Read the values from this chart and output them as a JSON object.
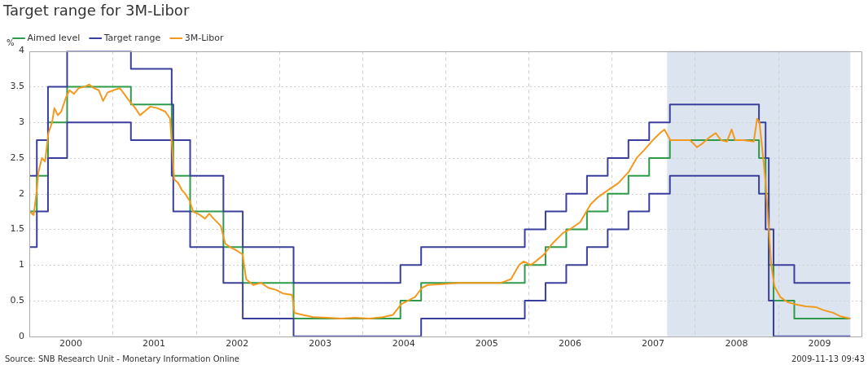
{
  "chart_data": {
    "type": "line",
    "title": "Target range for 3M-Libor",
    "ylabel": "%",
    "legend": "top left",
    "grid": true,
    "xlim": [
      "2000-01-01",
      "2010-01-01"
    ],
    "xticks": [
      {
        "value": "2000-07-01",
        "label": "2000"
      },
      {
        "value": "2001-01-01",
        "label": null
      },
      {
        "value": "2001-07-01",
        "label": "2001"
      },
      {
        "value": "2002-01-01",
        "label": null
      },
      {
        "value": "2002-07-01",
        "label": "2002"
      },
      {
        "value": "2003-01-01",
        "label": null
      },
      {
        "value": "2003-07-01",
        "label": "2003"
      },
      {
        "value": "2004-01-01",
        "label": null
      },
      {
        "value": "2004-07-01",
        "label": "2004"
      },
      {
        "value": "2005-01-01",
        "label": null
      },
      {
        "value": "2005-07-01",
        "label": "2005"
      },
      {
        "value": "2006-01-01",
        "label": null
      },
      {
        "value": "2006-07-01",
        "label": "2006"
      },
      {
        "value": "2007-01-01",
        "label": null
      },
      {
        "value": "2007-07-01",
        "label": "2007"
      },
      {
        "value": "2008-01-01",
        "label": null
      },
      {
        "value": "2008-07-01",
        "label": "2008"
      },
      {
        "value": "2009-01-01",
        "label": null
      },
      {
        "value": "2009-07-01",
        "label": "2009"
      }
    ],
    "ylim": [
      0,
      4
    ],
    "yticks": [
      0,
      0.5,
      1,
      1.5,
      2,
      2.5,
      3,
      3.5,
      4
    ],
    "bands": [
      {
        "axis": "x",
        "from": "2007-09",
        "to": "2009-11-13",
        "color": "#dce4f0"
      }
    ],
    "series": [
      {
        "name": "Aimed level",
        "type": "step",
        "color": "#2e9a4a",
        "x": [
          "2000-01-01",
          "2000-02-03",
          "2000-03-23",
          "2000-06-15",
          "2001-03-22",
          "2001-09-17",
          "2001-09-24",
          "2001-12-07",
          "2002-05-02",
          "2002-07-26",
          "2003-03-06",
          "2004-06-17",
          "2004-09-16",
          "2005-12-15",
          "2006-03-16",
          "2006-06-15",
          "2006-09-14",
          "2006-12-14",
          "2007-03-15",
          "2007-06-14",
          "2007-09-13",
          "2008-10-08",
          "2008-11-06",
          "2008-11-20",
          "2008-12-11",
          "2009-03-12",
          "2009-11-13"
        ],
        "values": [
          1.75,
          2.25,
          3,
          3.5,
          3.25,
          2.75,
          2.25,
          1.75,
          1.25,
          0.75,
          0.25,
          0.5,
          0.75,
          1,
          1.25,
          1.5,
          1.75,
          2,
          2.25,
          2.5,
          2.75,
          2.5,
          2,
          1,
          0.5,
          0.25,
          0.25
        ]
      },
      {
        "name": "Target range",
        "type": "step",
        "color": "#3b3f9c",
        "x": [
          "2000-01-01",
          "2000-02-03",
          "2000-03-23",
          "2000-06-15",
          "2001-03-22",
          "2001-09-17",
          "2001-09-24",
          "2001-12-07",
          "2002-05-02",
          "2002-07-26",
          "2003-03-06",
          "2004-06-17",
          "2004-09-16",
          "2005-12-15",
          "2006-03-16",
          "2006-06-15",
          "2006-09-14",
          "2006-12-14",
          "2007-03-15",
          "2007-06-14",
          "2007-09-13",
          "2008-10-08",
          "2008-11-06",
          "2008-11-20",
          "2008-12-11",
          "2009-03-12",
          "2009-11-13"
        ],
        "values": [
          2.25,
          2.75,
          3.5,
          4,
          3.75,
          3.25,
          2.75,
          2.25,
          1.75,
          1.25,
          0.75,
          1,
          1.25,
          1.5,
          1.75,
          2,
          2.25,
          2.5,
          2.75,
          3,
          3.25,
          3,
          2.5,
          1.5,
          1,
          0.75,
          0.75
        ]
      },
      {
        "type": "step",
        "color": "#3b3f9c",
        "x": [
          "2000-01-01",
          "2000-02-03",
          "2000-03-23",
          "2000-06-15",
          "2001-03-22",
          "2001-09-17",
          "2001-09-24",
          "2001-12-07",
          "2002-05-02",
          "2002-07-26",
          "2003-03-06",
          "2004-06-17",
          "2004-09-16",
          "2005-12-15",
          "2006-03-16",
          "2006-06-15",
          "2006-09-14",
          "2006-12-14",
          "2007-03-15",
          "2007-06-14",
          "2007-09-13",
          "2008-10-08",
          "2008-11-06",
          "2008-11-20",
          "2008-12-11",
          "2009-03-12",
          "2009-11-13"
        ],
        "values": [
          1.25,
          1.75,
          2.5,
          3,
          2.75,
          2.25,
          1.75,
          1.25,
          0.75,
          0.25,
          0,
          0,
          0.25,
          0.5,
          0.75,
          1,
          1.25,
          1.5,
          1.75,
          2,
          2.25,
          2,
          1.5,
          0.5,
          0,
          0,
          0
        ]
      },
      {
        "name": "3M-Libor",
        "type": "line",
        "color": "#f39a1e",
        "x": [
          "2000-01-03",
          "2000-01-20",
          "2000-02-01",
          "2000-02-10",
          "2000-02-25",
          "2000-03-10",
          "2000-03-25",
          "2000-04-10",
          "2000-04-20",
          "2000-05-05",
          "2000-05-20",
          "2000-06-10",
          "2000-06-25",
          "2000-07-15",
          "2000-08-05",
          "2000-09-01",
          "2000-09-20",
          "2000-10-10",
          "2000-11-01",
          "2000-11-20",
          "2000-12-10",
          "2001-01-05",
          "2001-02-01",
          "2001-02-20",
          "2001-03-15",
          "2001-04-10",
          "2001-05-01",
          "2001-05-20",
          "2001-06-15",
          "2001-07-15",
          "2001-08-20",
          "2001-09-10",
          "2001-09-20",
          "2001-09-28",
          "2001-10-15",
          "2001-11-01",
          "2001-11-15",
          "2001-12-05",
          "2001-12-20",
          "2002-01-20",
          "2002-02-10",
          "2002-03-01",
          "2002-03-20",
          "2002-04-20",
          "2002-05-10",
          "2002-06-01",
          "2002-07-01",
          "2002-07-25",
          "2002-08-10",
          "2002-09-10",
          "2002-10-15",
          "2002-11-15",
          "2002-12-20",
          "2003-01-20",
          "2003-02-28",
          "2003-03-10",
          "2003-04-15",
          "2003-06-01",
          "2003-08-01",
          "2003-10-01",
          "2003-12-01",
          "2004-02-01",
          "2004-04-01",
          "2004-05-15",
          "2004-06-20",
          "2004-07-20",
          "2004-08-20",
          "2004-09-20",
          "2004-10-15",
          "2004-12-01",
          "2005-03-01",
          "2005-06-01",
          "2005-09-01",
          "2005-10-15",
          "2005-11-20",
          "2005-12-10",
          "2006-01-10",
          "2006-02-01",
          "2006-03-10",
          "2006-04-15",
          "2006-06-01",
          "2006-07-01",
          "2006-08-15",
          "2006-09-30",
          "2006-11-01",
          "2006-12-15",
          "2007-01-30",
          "2007-03-15",
          "2007-04-20",
          "2007-05-20",
          "2007-06-30",
          "2007-08-01",
          "2007-08-20",
          "2007-09-15",
          "2007-10-20",
          "2007-11-20",
          "2007-12-10",
          "2008-01-01",
          "2008-01-10",
          "2008-02-01",
          "2008-03-01",
          "2008-04-01",
          "2008-04-25",
          "2008-05-20",
          "2008-06-10",
          "2008-06-25",
          "2008-08-01",
          "2008-09-15",
          "2008-09-30",
          "2008-10-10",
          "2008-10-20",
          "2008-11-05",
          "2008-11-20",
          "2008-12-01",
          "2008-12-15",
          "2009-01-10",
          "2009-02-10",
          "2009-03-15",
          "2009-05-01",
          "2009-06-15",
          "2009-07-15",
          "2009-08-30",
          "2009-10-01",
          "2009-11-13"
        ],
        "values": [
          1.75,
          1.7,
          2,
          2.3,
          2.5,
          2.45,
          2.85,
          3,
          3.2,
          3.1,
          3.15,
          3.35,
          3.45,
          3.4,
          3.48,
          3.5,
          3.53,
          3.48,
          3.45,
          3.3,
          3.42,
          3.45,
          3.48,
          3.4,
          3.3,
          3.2,
          3.1,
          3.15,
          3.22,
          3.2,
          3.15,
          3.05,
          2.6,
          2.2,
          2.15,
          2.05,
          2,
          1.9,
          1.75,
          1.7,
          1.65,
          1.72,
          1.65,
          1.55,
          1.3,
          1.25,
          1.2,
          1.15,
          0.8,
          0.72,
          0.75,
          0.68,
          0.65,
          0.6,
          0.58,
          0.33,
          0.3,
          0.27,
          0.26,
          0.25,
          0.26,
          0.25,
          0.27,
          0.3,
          0.45,
          0.5,
          0.55,
          0.68,
          0.72,
          0.73,
          0.75,
          0.75,
          0.75,
          0.8,
          1,
          1.05,
          1,
          1.05,
          1.15,
          1.3,
          1.45,
          1.5,
          1.6,
          1.85,
          1.95,
          2.05,
          2.15,
          2.3,
          2.5,
          2.6,
          2.75,
          2.85,
          2.9,
          2.75,
          2.75,
          2.75,
          2.75,
          2.68,
          2.65,
          2.7,
          2.78,
          2.85,
          2.75,
          2.73,
          2.9,
          2.75,
          2.75,
          2.73,
          3.05,
          3,
          2.7,
          2.2,
          1.5,
          1,
          0.7,
          0.55,
          0.48,
          0.45,
          0.42,
          0.41,
          0.37,
          0.33,
          0.28,
          0.25
        ]
      }
    ],
    "annotations": [
      "Source: SNB Research Unit - Monetary Information Online",
      "2009-11-13 09:43"
    ]
  }
}
